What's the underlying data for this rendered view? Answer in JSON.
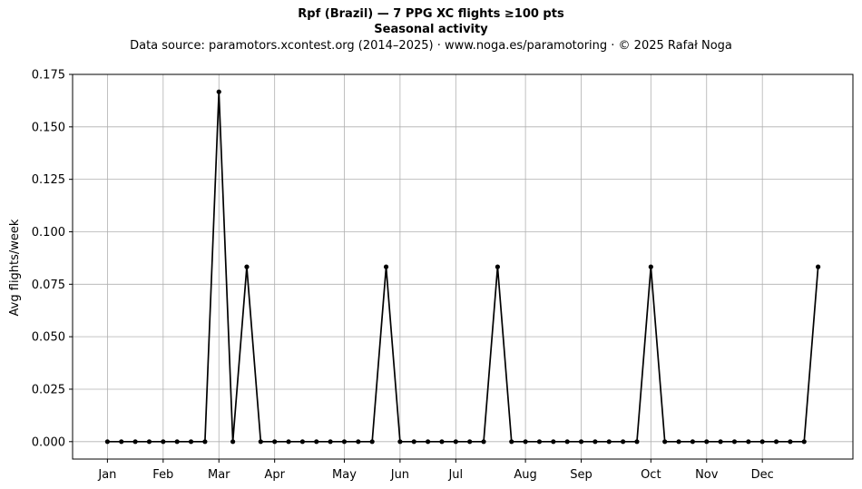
{
  "chart_data": {
    "type": "line",
    "title": "Rpf (Brazil)  —  7 PPG XC flights ≥100 pts",
    "subtitle": "Seasonal activity",
    "source_line": "Data source: paramotors.xcontest.org (2014–2025)  ·  www.noga.es/paramotoring  ·  © 2025 Rafał Noga",
    "ylabel": "Avg flights/week",
    "xlabel": "",
    "ylim": [
      -0.0083,
      0.175
    ],
    "xlim": [
      -2.5,
      53.5
    ],
    "grid": true,
    "line_color": "#000000",
    "y_ticks": [
      0.0,
      0.025,
      0.05,
      0.075,
      0.1,
      0.125,
      0.15,
      0.175
    ],
    "y_tick_labels": [
      "0.000",
      "0.025",
      "0.050",
      "0.075",
      "0.100",
      "0.125",
      "0.150",
      "0.175"
    ],
    "x_ticks": [
      0,
      4,
      8,
      12,
      17,
      21,
      25,
      30,
      34,
      39,
      43,
      47
    ],
    "x_tick_labels": [
      "Jan",
      "Feb",
      "Mar",
      "Apr",
      "May",
      "Jun",
      "Jul",
      "Aug",
      "Sep",
      "Oct",
      "Nov",
      "Dec"
    ],
    "series": [
      {
        "x": [
          0,
          1,
          2,
          3,
          4,
          5,
          6,
          7,
          8,
          9,
          10,
          11,
          12,
          13,
          14,
          15,
          16,
          17,
          18,
          19,
          20,
          21,
          22,
          23,
          24,
          25,
          26,
          27,
          28,
          29,
          30,
          31,
          32,
          33,
          34,
          35,
          36,
          37,
          38,
          39,
          40,
          41,
          42,
          43,
          44,
          45,
          46,
          47,
          48,
          49,
          50,
          51
        ],
        "values": [
          0,
          0,
          0,
          0,
          0,
          0,
          0,
          0,
          0.1667,
          0,
          0.0833,
          0,
          0,
          0,
          0,
          0,
          0,
          0,
          0,
          0,
          0.0833,
          0,
          0,
          0,
          0,
          0,
          0,
          0,
          0.0833,
          0,
          0,
          0,
          0,
          0,
          0,
          0,
          0,
          0,
          0,
          0.0833,
          0,
          0,
          0,
          0,
          0,
          0,
          0,
          0,
          0,
          0,
          0,
          0.0833
        ]
      }
    ]
  }
}
